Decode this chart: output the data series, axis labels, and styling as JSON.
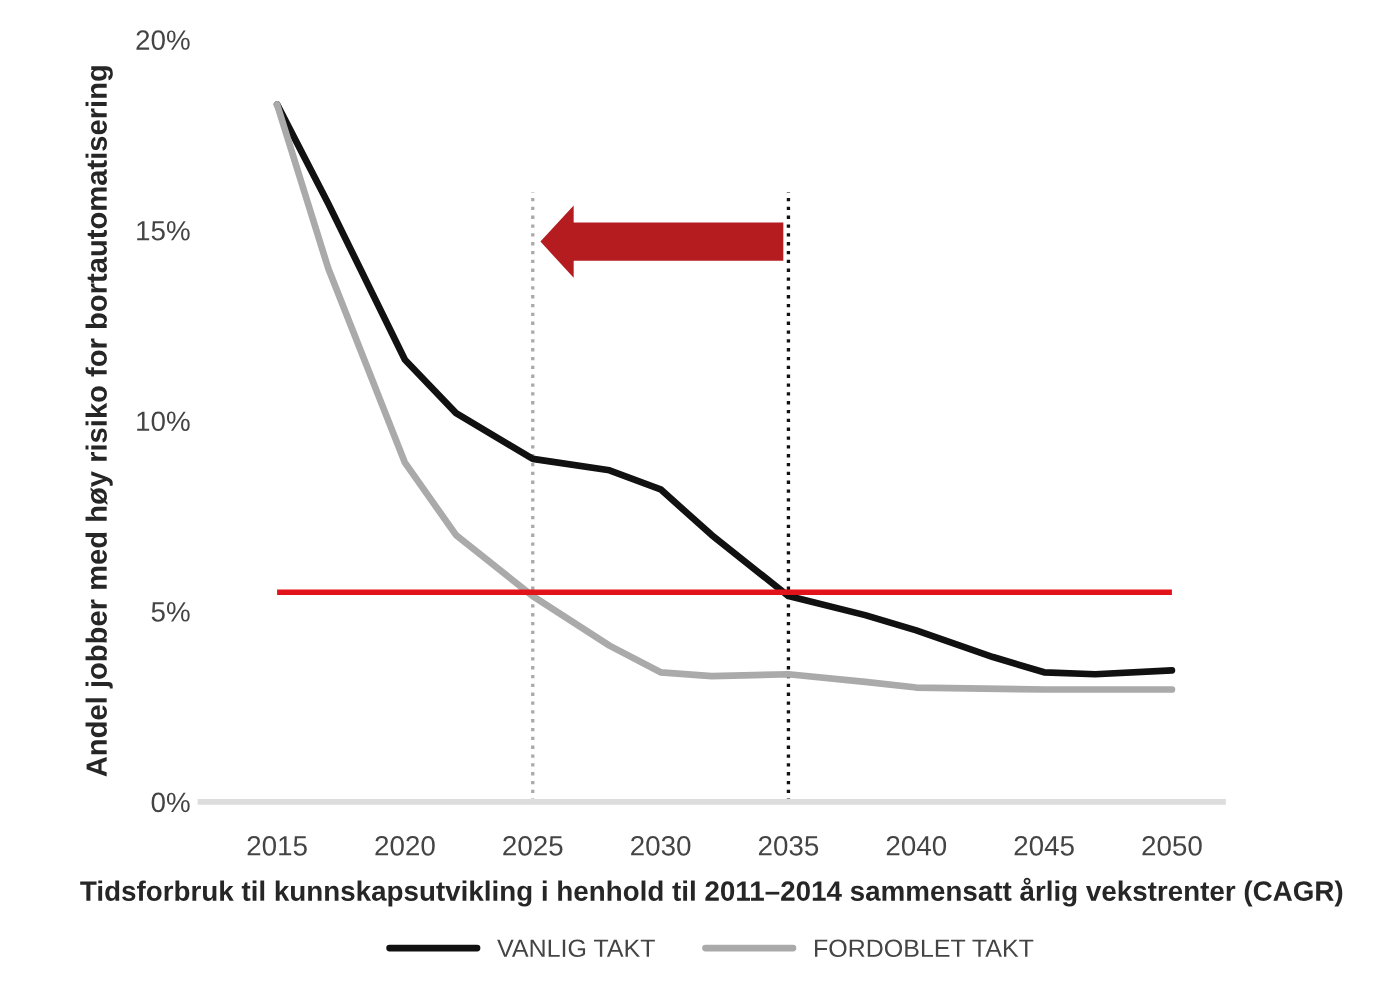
{
  "chart_data": {
    "type": "line",
    "xlabel": "Tidsforbruk til kunnskapsutvikling i henhold til 2011–2014 sammensatt årlig vekstrenter (CAGR)",
    "ylabel": "Andel jobber med høy risiko for bortautomatisering",
    "series": [
      {
        "name": "VANLIG TAKT",
        "color": "#111111",
        "x": [
          2015,
          2017,
          2020,
          2022,
          2025,
          2028,
          2030,
          2032,
          2035,
          2038,
          2040,
          2043,
          2045,
          2047,
          2050
        ],
        "values": [
          18.3,
          15.7,
          11.6,
          10.2,
          9.0,
          8.7,
          8.2,
          7.0,
          5.4,
          4.9,
          4.5,
          3.8,
          3.4,
          3.35,
          3.45
        ]
      },
      {
        "name": "FORDOBLET TAKT",
        "color": "#aaaaaa",
        "x": [
          2015,
          2017,
          2020,
          2022,
          2025,
          2028,
          2030,
          2032,
          2035,
          2038,
          2040,
          2045,
          2050
        ],
        "values": [
          18.3,
          14.0,
          8.9,
          7.0,
          5.4,
          4.1,
          3.4,
          3.3,
          3.35,
          3.15,
          3.0,
          2.95,
          2.95
        ]
      }
    ],
    "ref_lines": [
      {
        "axis": "y",
        "value": 5.5,
        "color": "#e3131b",
        "line_style": "solid"
      },
      {
        "axis": "x",
        "value": 2025,
        "color": "#aaaaaa",
        "line_style": "dotted"
      },
      {
        "axis": "x",
        "value": 2035,
        "color": "#111111",
        "line_style": "dotted"
      }
    ],
    "xlim": [
      2012,
      2052
    ],
    "ylim": [
      0,
      20
    ],
    "xticks": [
      2015,
      2020,
      2025,
      2030,
      2035,
      2040,
      2045,
      2050
    ],
    "yticks": [
      {
        "value": 0,
        "label": "0%"
      },
      {
        "value": 5,
        "label": "5%"
      },
      {
        "value": 10,
        "label": "10%"
      },
      {
        "value": 15,
        "label": "15%"
      },
      {
        "value": 20,
        "label": "20%"
      }
    ],
    "grid": false,
    "legend": "bottom",
    "line_style": "solid",
    "marker": "none"
  }
}
